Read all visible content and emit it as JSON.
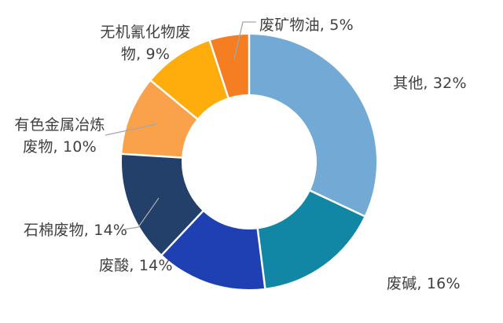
{
  "chart_data": {
    "type": "pie",
    "subtype": "donut",
    "title": "",
    "legend": "none",
    "direction": "clockwise",
    "start_angle_deg": 0,
    "inner_radius_ratio": 0.53,
    "label_format": "name, percent",
    "text_color": "#404040",
    "leader_line_color": "#A6A6A6",
    "segments": [
      {
        "label": "其他",
        "value": 32,
        "color": "#72AAD5",
        "display": "其他, 32%"
      },
      {
        "label": "废碱",
        "value": 16,
        "color": "#1287A5",
        "display": "废碱, 16%"
      },
      {
        "label": "废酸",
        "value": 14,
        "color": "#1E40B2",
        "display": "废酸, 14%"
      },
      {
        "label": "石棉废物",
        "value": 14,
        "color": "#22406A",
        "display": "石棉废物, 14%"
      },
      {
        "label": "有色金属冶炼废物",
        "value": 10,
        "color": "#F9A24B",
        "display": "有色金属冶炼废物, 10%"
      },
      {
        "label": "无机氰化物废物",
        "value": 9,
        "color": "#FFAD0D",
        "display": "无机氰化物废物, 9%"
      },
      {
        "label": "废矿物油",
        "value": 5,
        "color": "#F57E22",
        "display": "废矿物油, 5%"
      }
    ]
  }
}
